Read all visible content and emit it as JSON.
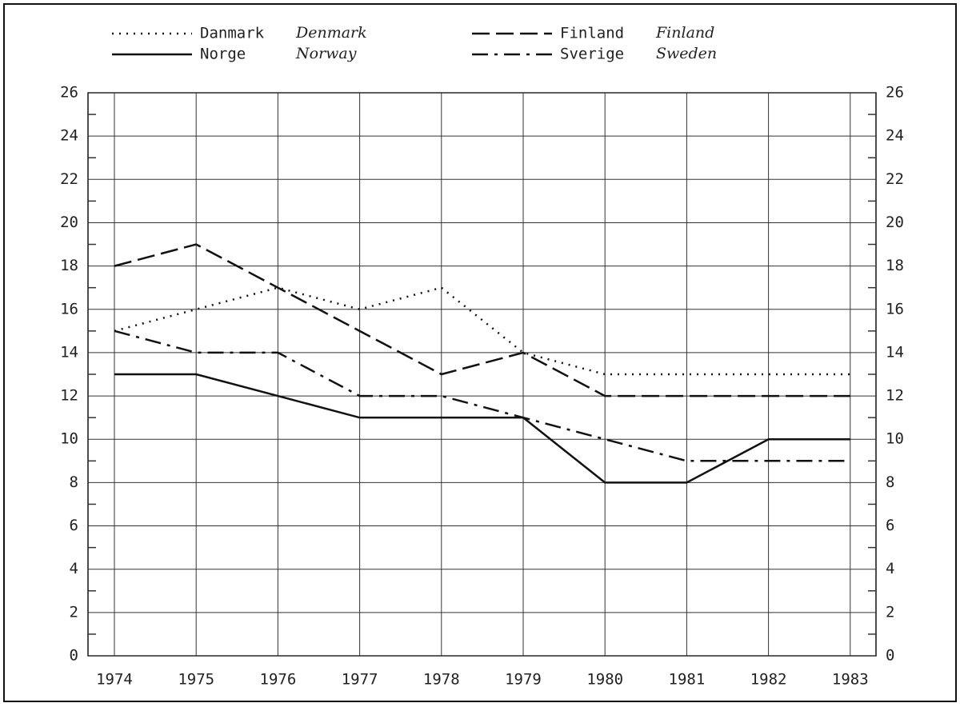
{
  "chart_data": {
    "type": "line",
    "categories": [
      "1974",
      "1975",
      "1976",
      "1977",
      "1978",
      "1979",
      "1980",
      "1981",
      "1982",
      "1983"
    ],
    "series": [
      {
        "name": "Danmark",
        "name_en": "Denmark",
        "color": "#111111",
        "dash": "dotted",
        "values": [
          15,
          16,
          17,
          16,
          17,
          14,
          13,
          13,
          13,
          13
        ]
      },
      {
        "name": "Finland",
        "name_en": "Finland",
        "color": "#111111",
        "dash": "dashed",
        "values": [
          18,
          19,
          17,
          15,
          13,
          14,
          12,
          12,
          12,
          12
        ]
      },
      {
        "name": "Norge",
        "name_en": "Norway",
        "color": "#111111",
        "dash": "solid",
        "values": [
          13,
          13,
          12,
          11,
          11,
          11,
          8,
          8,
          10,
          10
        ]
      },
      {
        "name": "Sverige",
        "name_en": "Sweden",
        "color": "#111111",
        "dash": "dashdot",
        "values": [
          15,
          14,
          14,
          12,
          12,
          11,
          10,
          9,
          9,
          9
        ]
      }
    ],
    "ylim": [
      0,
      26
    ],
    "yticks": [
      0,
      2,
      4,
      6,
      8,
      10,
      12,
      14,
      16,
      18,
      20,
      22,
      24,
      26
    ],
    "yminorticks": [
      1,
      3,
      5,
      7,
      9,
      11,
      13,
      15,
      17,
      19,
      21,
      23,
      25
    ],
    "grid": true
  }
}
